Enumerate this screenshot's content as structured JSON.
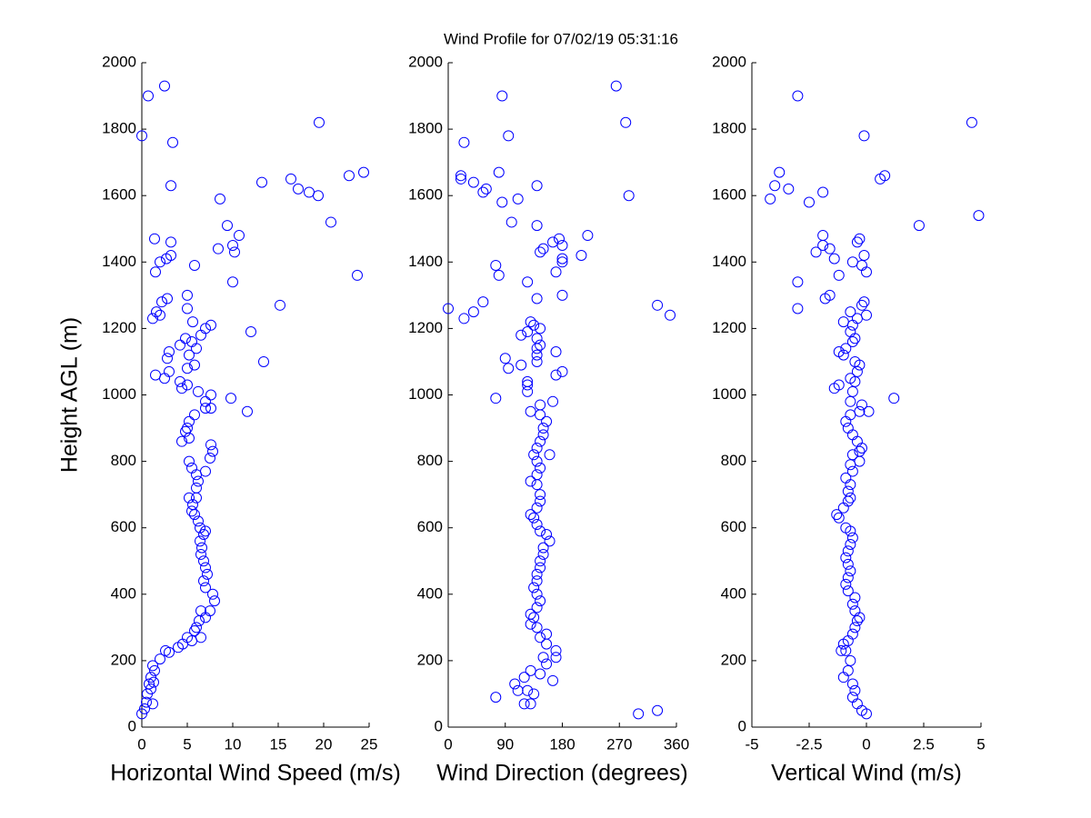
{
  "title": "Wind Profile for  07/02/19 05:31:16",
  "chart_data": [
    {
      "type": "scatter",
      "x_label": "Horizontal Wind Speed (m/s)",
      "y_label": "Height AGL (m)",
      "color": "#0000ff",
      "xlim": [
        0,
        25
      ],
      "xticks": [
        0,
        5,
        10,
        15,
        20,
        25
      ],
      "ylim": [
        0,
        2000
      ],
      "yticks": [
        0,
        200,
        400,
        600,
        800,
        1000,
        1200,
        1400,
        1600,
        1800,
        2000
      ],
      "x": [
        0,
        0.3,
        0.5,
        1.2,
        0.6,
        1,
        0.8,
        1.3,
        1,
        1.4,
        1.2,
        2,
        3,
        2.6,
        4,
        4.5,
        5,
        5.5,
        6.5,
        5.8,
        6,
        6.3,
        7,
        6.5,
        7.5,
        8,
        7.8,
        7,
        6.8,
        7.2,
        7,
        6.8,
        6.5,
        6.6,
        6.4,
        6.8,
        7,
        6.4,
        6.2,
        5.8,
        5.5,
        5.6,
        5.2,
        6,
        6,
        6.2,
        6,
        7,
        5.5,
        5.2,
        7.5,
        7.8,
        7.6,
        4.4,
        5.2,
        4.8,
        5,
        5.2,
        5.8,
        7,
        7.6,
        7,
        7.6,
        6.2,
        9.8,
        11.6,
        4.4,
        5,
        4.2,
        2.5,
        1.5,
        3,
        5,
        5.8,
        13.4,
        2.8,
        5.2,
        3,
        6,
        4.2,
        4.8,
        5.5,
        6.5,
        7,
        7.6,
        12,
        5.6,
        1.2,
        1.6,
        2,
        5,
        2.2,
        2.8,
        5,
        15.2,
        10,
        23.7,
        1.5,
        2,
        5.8,
        2.7,
        3.2,
        8.4,
        10,
        10.2,
        10.7,
        3.2,
        1.4,
        9.4,
        20.8,
        8.6,
        18.4,
        19.4,
        17.2,
        16.4,
        13.2,
        22.8,
        24.4,
        3.2,
        3.4,
        0,
        19.5,
        0.7,
        2.5
      ],
      "values": [
        40,
        55,
        75,
        70,
        100,
        115,
        130,
        135,
        150,
        170,
        185,
        205,
        225,
        230,
        240,
        250,
        270,
        260,
        270,
        290,
        300,
        320,
        330,
        350,
        350,
        380,
        400,
        420,
        440,
        460,
        480,
        500,
        520,
        540,
        560,
        580,
        590,
        600,
        620,
        640,
        650,
        670,
        690,
        690,
        720,
        740,
        760,
        770,
        780,
        800,
        810,
        830,
        850,
        860,
        870,
        890,
        900,
        920,
        940,
        960,
        960,
        980,
        1000,
        1010,
        990,
        950,
        1020,
        1030,
        1040,
        1050,
        1060,
        1070,
        1080,
        1090,
        1100,
        1110,
        1120,
        1130,
        1140,
        1150,
        1170,
        1160,
        1180,
        1200,
        1210,
        1190,
        1220,
        1230,
        1250,
        1240,
        1260,
        1280,
        1290,
        1300,
        1270,
        1340,
        1360,
        1370,
        1400,
        1390,
        1410,
        1420,
        1440,
        1450,
        1430,
        1480,
        1460,
        1470,
        1510,
        1520,
        1590,
        1610,
        1600,
        1620,
        1650,
        1640,
        1660,
        1670,
        1630,
        1760,
        1780,
        1820,
        1900,
        1930
      ]
    },
    {
      "type": "scatter",
      "x_label": "Wind Direction (degrees)",
      "color": "#0000ff",
      "xlim": [
        0,
        360
      ],
      "xticks": [
        0,
        90,
        180,
        270,
        360
      ],
      "ylim": [
        0,
        2000
      ],
      "yticks": [
        0,
        200,
        400,
        600,
        800,
        1000,
        1200,
        1400,
        1600,
        1800,
        2000
      ],
      "x": [
        300,
        330,
        75,
        120,
        130,
        110,
        125,
        105,
        135,
        120,
        130,
        145,
        165,
        155,
        150,
        170,
        170,
        155,
        145,
        155,
        140,
        130,
        135,
        130,
        140,
        145,
        140,
        135,
        140,
        140,
        145,
        145,
        150,
        150,
        160,
        155,
        145,
        140,
        135,
        130,
        140,
        145,
        145,
        140,
        130,
        140,
        145,
        140,
        135,
        160,
        140,
        145,
        150,
        150,
        155,
        145,
        130,
        145,
        165,
        75,
        125,
        125,
        125,
        170,
        180,
        95,
        90,
        140,
        115,
        140,
        140,
        145,
        170,
        140,
        115,
        125,
        135,
        145,
        130,
        25,
        40,
        55,
        140,
        180,
        0,
        330,
        350,
        125,
        80,
        75,
        170,
        145,
        150,
        165,
        175,
        180,
        180,
        180,
        210,
        220,
        140,
        100,
        40,
        20,
        20,
        55,
        60,
        85,
        110,
        140,
        80,
        285,
        25,
        95,
        280,
        85,
        265
      ],
      "values": [
        40,
        50,
        90,
        70,
        70,
        110,
        110,
        130,
        100,
        150,
        170,
        160,
        140,
        190,
        210,
        210,
        230,
        250,
        270,
        280,
        300,
        310,
        330,
        340,
        360,
        380,
        400,
        420,
        440,
        460,
        480,
        500,
        520,
        540,
        560,
        580,
        590,
        610,
        630,
        640,
        660,
        680,
        700,
        730,
        740,
        760,
        780,
        800,
        820,
        820,
        840,
        860,
        880,
        900,
        920,
        940,
        950,
        970,
        980,
        990,
        1010,
        1030,
        1040,
        1060,
        1070,
        1080,
        1110,
        1100,
        1090,
        1120,
        1140,
        1150,
        1130,
        1170,
        1180,
        1190,
        1210,
        1200,
        1220,
        1230,
        1250,
        1280,
        1290,
        1300,
        1260,
        1270,
        1240,
        1340,
        1360,
        1390,
        1370,
        1430,
        1440,
        1460,
        1470,
        1450,
        1410,
        1400,
        1420,
        1480,
        1510,
        1520,
        1640,
        1660,
        1650,
        1610,
        1620,
        1580,
        1590,
        1630,
        1670,
        1600,
        1760,
        1780,
        1820,
        1900,
        1930
      ]
    },
    {
      "type": "scatter",
      "x_label": "Vertical Wind (m/s)",
      "color": "#0000ff",
      "xlim": [
        -5,
        5
      ],
      "xticks": [
        -5,
        -2.5,
        0,
        2.5,
        5
      ],
      "ylim": [
        0,
        2000
      ],
      "yticks": [
        0,
        200,
        400,
        600,
        800,
        1000,
        1200,
        1400,
        1600,
        1800,
        2000
      ],
      "x": [
        0,
        -0.2,
        -0.4,
        -0.6,
        -0.5,
        -0.6,
        -1,
        -0.8,
        -0.7,
        -0.9,
        -1.1,
        -1,
        -0.8,
        -0.6,
        -0.5,
        -0.4,
        -0.3,
        -0.5,
        -0.6,
        -0.5,
        -0.8,
        -0.9,
        -0.8,
        -0.7,
        -0.8,
        -0.9,
        -0.8,
        -0.7,
        -0.6,
        -0.7,
        -0.9,
        -1.2,
        -1.3,
        -1,
        -0.8,
        -0.7,
        -0.8,
        -0.7,
        -0.9,
        -0.6,
        -0.7,
        -0.3,
        -0.6,
        -0.2,
        -0.3,
        -0.4,
        -0.6,
        -0.8,
        -0.9,
        -0.7,
        -0.3,
        0.1,
        -0.2,
        -0.7,
        -0.6,
        1.2,
        -0.5,
        -1.4,
        -1.2,
        -0.7,
        -0.4,
        -0.3,
        -0.5,
        -1.2,
        -0.9,
        -1,
        -0.6,
        -0.5,
        -0.7,
        -1,
        -0.6,
        -0.4,
        -0.7,
        -0.2,
        -0.1,
        0,
        -3,
        -1.8,
        -1.6,
        -3,
        -1.2,
        -0.2,
        0,
        -0.6,
        -0.1,
        -1.4,
        -1.6,
        -1.9,
        -2.2,
        -1.9,
        -0.4,
        -0.3,
        2.3,
        4.9,
        -2.5,
        -1.9,
        -3.4,
        -4.2,
        -4,
        -3.8,
        0.6,
        0.8,
        -0.1,
        4.6,
        -3
      ],
      "values": [
        40,
        50,
        70,
        90,
        110,
        130,
        150,
        170,
        200,
        230,
        230,
        250,
        260,
        280,
        300,
        320,
        330,
        350,
        370,
        390,
        410,
        430,
        450,
        470,
        490,
        510,
        530,
        550,
        570,
        590,
        600,
        630,
        640,
        660,
        680,
        690,
        710,
        730,
        750,
        770,
        790,
        800,
        820,
        840,
        830,
        860,
        880,
        900,
        920,
        940,
        950,
        950,
        970,
        980,
        1010,
        990,
        1040,
        1020,
        1030,
        1050,
        1070,
        1090,
        1100,
        1130,
        1140,
        1120,
        1160,
        1170,
        1190,
        1220,
        1210,
        1230,
        1250,
        1270,
        1280,
        1240,
        1260,
        1290,
        1300,
        1340,
        1360,
        1390,
        1370,
        1400,
        1420,
        1410,
        1440,
        1450,
        1430,
        1480,
        1460,
        1470,
        1510,
        1540,
        1580,
        1610,
        1620,
        1590,
        1630,
        1670,
        1650,
        1660,
        1780,
        1820,
        1900
      ]
    }
  ]
}
